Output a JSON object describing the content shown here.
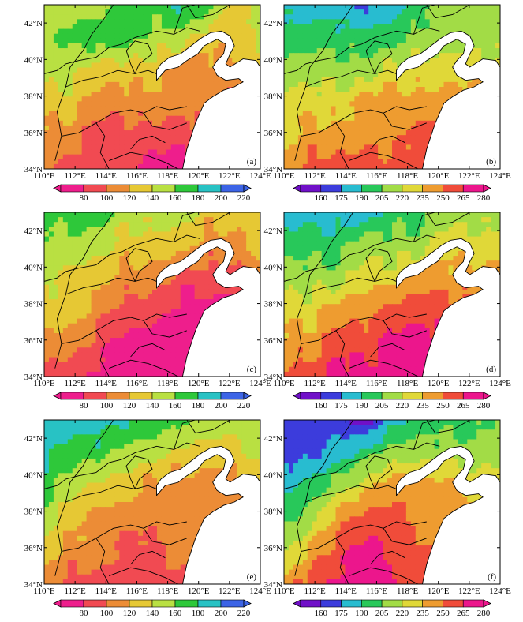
{
  "figure": {
    "panels": [
      {
        "label": "(a)",
        "colorbar_ticks": [
          "80",
          "100",
          "120",
          "140",
          "160",
          "180",
          "200",
          "220"
        ],
        "palette": [
          "#ee1e8c",
          "#f14a52",
          "#ec8c36",
          "#e6c834",
          "#b9e042",
          "#2ec83a",
          "#28c2c4",
          "#3c64e6"
        ],
        "field": [
          [
            4,
            4,
            4,
            5,
            5,
            6,
            5,
            3,
            4
          ],
          [
            4,
            5,
            5,
            5,
            4,
            4,
            3,
            3,
            4
          ],
          [
            4,
            4,
            3,
            3,
            3,
            2,
            2,
            2,
            3
          ],
          [
            3,
            3,
            2,
            2,
            2,
            2,
            2,
            1,
            2
          ],
          [
            2,
            2,
            1,
            1,
            1,
            1,
            1,
            1,
            1
          ],
          [
            2,
            1,
            1,
            1,
            0,
            0,
            1,
            1,
            1
          ]
        ]
      },
      {
        "label": "(b)",
        "colorbar_ticks": [
          "160",
          "175",
          "190",
          "205",
          "220",
          "235",
          "250",
          "265",
          "280"
        ],
        "palette": [
          "#7010c8",
          "#3c3cdc",
          "#28bcd0",
          "#28c85a",
          "#a2dc46",
          "#e0d838",
          "#ee9c30",
          "#f04c3a",
          "#ec168c"
        ],
        "field": [
          [
            2,
            2,
            2,
            1,
            2,
            3,
            4,
            4,
            4
          ],
          [
            3,
            3,
            3,
            3,
            3,
            4,
            4,
            4,
            4
          ],
          [
            4,
            4,
            4,
            4,
            5,
            5,
            5,
            5,
            5
          ],
          [
            5,
            5,
            5,
            6,
            6,
            6,
            6,
            6,
            6
          ],
          [
            5,
            6,
            6,
            6,
            6,
            7,
            7,
            6,
            6
          ],
          [
            6,
            7,
            7,
            7,
            7,
            7,
            7,
            7,
            7
          ]
        ]
      },
      {
        "label": "(c)",
        "colorbar_ticks": [
          "80",
          "100",
          "120",
          "140",
          "160",
          "180",
          "200",
          "220"
        ],
        "palette": [
          "#ee1e8c",
          "#f14a52",
          "#ec8c36",
          "#e6c834",
          "#b9e042",
          "#2ec83a",
          "#28c2c4",
          "#3c64e6"
        ],
        "field": [
          [
            5,
            5,
            5,
            4,
            4,
            4,
            3,
            3,
            3
          ],
          [
            4,
            4,
            4,
            3,
            3,
            3,
            2,
            2,
            3
          ],
          [
            4,
            3,
            3,
            2,
            2,
            1,
            1,
            1,
            2
          ],
          [
            3,
            3,
            2,
            1,
            1,
            0,
            0,
            0,
            1
          ],
          [
            2,
            2,
            1,
            0,
            0,
            0,
            0,
            0,
            0
          ],
          [
            1,
            1,
            0,
            0,
            0,
            0,
            0,
            0,
            0
          ]
        ]
      },
      {
        "label": "(d)",
        "colorbar_ticks": [
          "160",
          "175",
          "190",
          "205",
          "220",
          "235",
          "250",
          "265",
          "280"
        ],
        "palette": [
          "#7010c8",
          "#3c3cdc",
          "#28bcd0",
          "#28c85a",
          "#a2dc46",
          "#e0d838",
          "#ee9c30",
          "#f04c3a",
          "#ec168c"
        ],
        "field": [
          [
            2,
            2,
            2,
            2,
            3,
            3,
            4,
            4,
            4
          ],
          [
            3,
            3,
            3,
            4,
            4,
            4,
            5,
            5,
            5
          ],
          [
            4,
            4,
            4,
            5,
            5,
            6,
            6,
            6,
            6
          ],
          [
            5,
            5,
            6,
            6,
            7,
            7,
            7,
            7,
            7
          ],
          [
            6,
            6,
            7,
            7,
            8,
            8,
            8,
            8,
            8
          ],
          [
            7,
            7,
            8,
            8,
            8,
            8,
            8,
            8,
            8
          ]
        ]
      },
      {
        "label": "(e)",
        "colorbar_ticks": [
          "80",
          "100",
          "120",
          "140",
          "160",
          "180",
          "200",
          "220"
        ],
        "palette": [
          "#ee1e8c",
          "#f14a52",
          "#ec8c36",
          "#e6c834",
          "#b9e042",
          "#2ec83a",
          "#28c2c4",
          "#3c64e6"
        ],
        "field": [
          [
            6,
            6,
            6,
            6,
            5,
            5,
            4,
            4,
            4
          ],
          [
            6,
            5,
            5,
            4,
            4,
            3,
            3,
            3,
            4
          ],
          [
            5,
            4,
            3,
            3,
            2,
            2,
            2,
            2,
            3
          ],
          [
            4,
            3,
            2,
            2,
            2,
            2,
            2,
            2,
            2
          ],
          [
            3,
            2,
            2,
            1,
            1,
            2,
            2,
            2,
            2
          ],
          [
            2,
            1,
            1,
            1,
            1,
            1,
            1,
            1,
            1
          ]
        ]
      },
      {
        "label": "(f)",
        "colorbar_ticks": [
          "160",
          "175",
          "190",
          "205",
          "220",
          "235",
          "250",
          "265",
          "280"
        ],
        "palette": [
          "#7010c8",
          "#3c3cdc",
          "#28bcd0",
          "#28c85a",
          "#a2dc46",
          "#e0d838",
          "#ee9c30",
          "#f04c3a",
          "#ec168c"
        ],
        "field": [
          [
            1,
            1,
            1,
            0,
            2,
            3,
            3,
            3,
            4
          ],
          [
            1,
            1,
            2,
            3,
            4,
            4,
            4,
            4,
            4
          ],
          [
            2,
            3,
            4,
            5,
            6,
            6,
            6,
            5,
            5
          ],
          [
            3,
            4,
            6,
            7,
            7,
            6,
            6,
            6,
            6
          ],
          [
            4,
            6,
            7,
            8,
            7,
            7,
            6,
            6,
            6
          ],
          [
            6,
            7,
            8,
            8,
            8,
            7,
            7,
            7,
            7
          ]
        ]
      }
    ],
    "axes": {
      "x_ticks": [
        "110°E",
        "112°E",
        "114°E",
        "116°E",
        "118°E",
        "120°E",
        "122°E",
        "124°E"
      ],
      "y_ticks": [
        "34°N",
        "36°N",
        "38°N",
        "40°N",
        "42°N"
      ],
      "lon_range": [
        110,
        124
      ],
      "lat_range": [
        34,
        43
      ]
    },
    "colors": {
      "sea": "#ffffff",
      "boundary": "#000000"
    }
  }
}
